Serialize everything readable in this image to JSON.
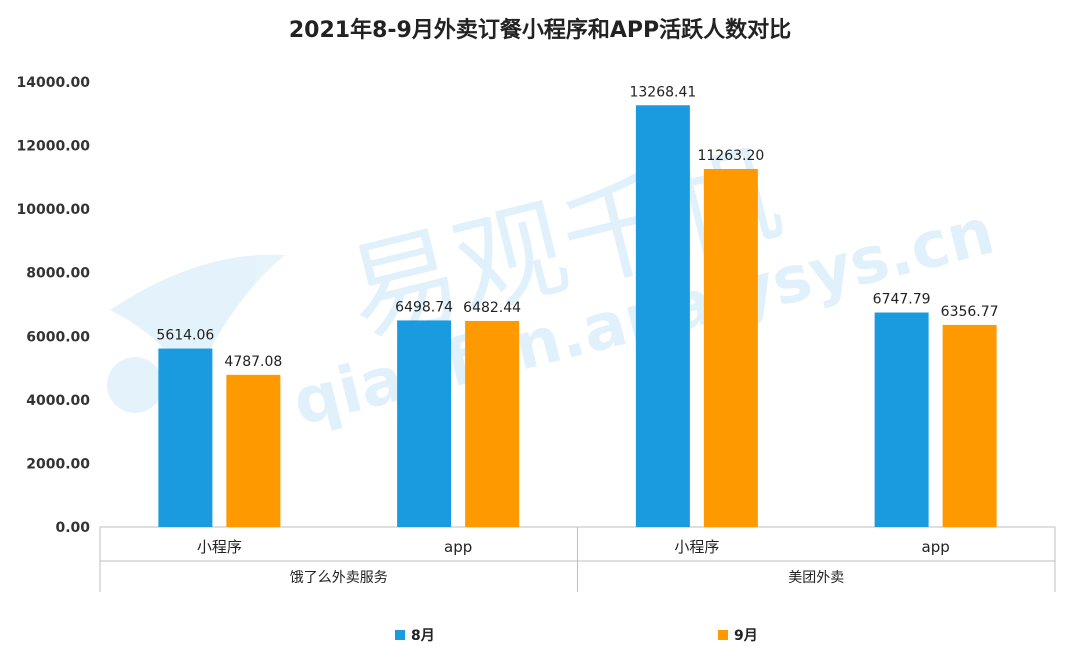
{
  "chart_data": {
    "type": "bar",
    "title": "2021年8-9月外卖订餐小程序和APP活跃人数对比",
    "xlabel": "",
    "ylabel": "",
    "ylim": [
      0,
      14000
    ],
    "yticks": [
      "0.00",
      "2000.00",
      "4000.00",
      "6000.00",
      "8000.00",
      "10000.00",
      "12000.00",
      "14000.00"
    ],
    "categories": [
      "小程序",
      "app",
      "小程序",
      "app"
    ],
    "groups": [
      {
        "label": "饿了么外卖服务",
        "span": 2
      },
      {
        "label": "美团外卖",
        "span": 2
      }
    ],
    "series": [
      {
        "name": "8月",
        "color": "#1a9be0",
        "values": [
          5614.06,
          6498.74,
          13268.41,
          6747.79
        ],
        "labels": [
          "5614.06",
          "6498.74",
          "13268.41",
          "6747.79"
        ]
      },
      {
        "name": "9月",
        "color": "#ff9900",
        "values": [
          4787.08,
          6482.44,
          11263.2,
          6356.77
        ],
        "labels": [
          "4787.08",
          "6482.44",
          "11263.20",
          "6356.77"
        ]
      }
    ],
    "legend": "bottom",
    "grid": false
  },
  "watermark": {
    "text_cn": "易观千帆",
    "text_en": "qianfan.analysys.cn"
  }
}
